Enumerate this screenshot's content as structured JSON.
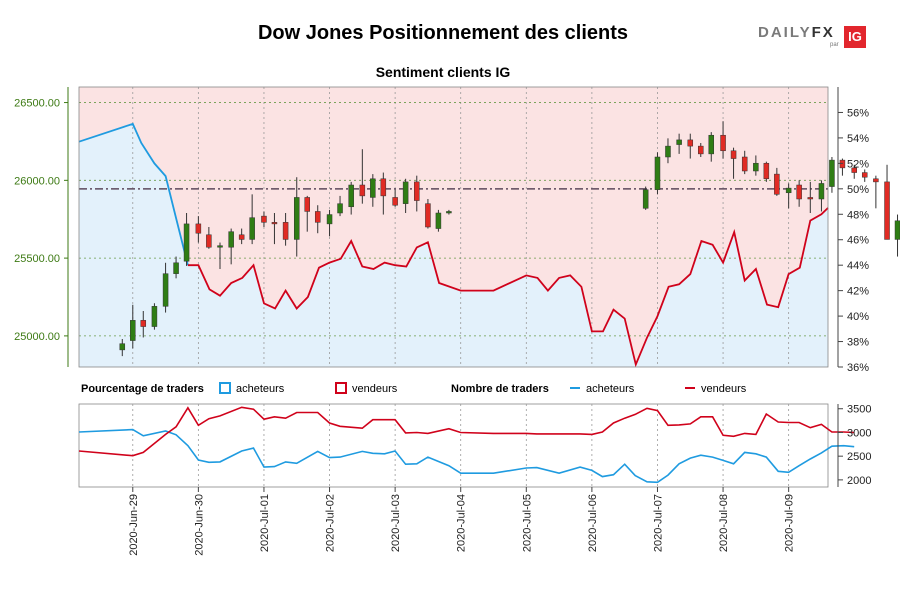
{
  "title": "Dow Jones Positionnement des clients",
  "subtitle": "Sentiment clients IG",
  "logo": {
    "brand": "DAILY",
    "brand_fx": "FX",
    "par": "par",
    "ig": "IG"
  },
  "colors": {
    "buyers": "#1f9be0",
    "sellers": "#d0021b",
    "buyers_fill": "#e3f1fb",
    "sellers_fill": "#fbe3e3",
    "candle_up": "#2f7d14",
    "candle_down": "#e02b24",
    "price_axis": "#3d7a14",
    "ref_line": "#5c4a5c"
  },
  "legend": {
    "pct_label": "Pourcentage de traders",
    "count_label": "Nombre de traders",
    "buyers": "acheteurs",
    "sellers": "vendeurs"
  },
  "chart_data": {
    "type": "candlestick+area+line",
    "title": "Dow Jones Positionnement des clients",
    "subtitle": "Sentiment clients IG",
    "x_ticks": [
      "2020-Jun-29",
      "2020-Jun-30",
      "2020-Jul-01",
      "2020-Jul-02",
      "2020-Jul-03",
      "2020-Jul-04",
      "2020-Jul-05",
      "2020-Jul-06",
      "2020-Jul-07",
      "2020-Jul-08",
      "2020-Jul-09"
    ],
    "x_range": [
      -0.82,
      10.6
    ],
    "price_axis": {
      "ticks": [
        25000,
        25500,
        26000,
        26500
      ],
      "labels": [
        "25000.00",
        "25500.00",
        "26000.00",
        "26500.00"
      ],
      "range": [
        24800,
        26600
      ]
    },
    "pct_axis": {
      "ticks": [
        36,
        38,
        40,
        42,
        44,
        46,
        48,
        50,
        52,
        54,
        56
      ],
      "labels": [
        "36%",
        "38%",
        "40%",
        "42%",
        "44%",
        "46%",
        "48%",
        "50%",
        "52%",
        "54%",
        "56%"
      ],
      "range": [
        36,
        58
      ]
    },
    "count_axis": {
      "ticks": [
        2000,
        2500,
        3000,
        3500
      ],
      "labels": [
        "2000",
        "2500",
        "3000",
        "3500"
      ],
      "range": [
        1850,
        3600
      ]
    },
    "reference_pct": 50,
    "buyers_pct": {
      "x": [
        -0.82,
        0.0,
        0.13,
        0.33,
        0.5,
        0.67,
        0.84,
        1.0,
        1.17,
        1.33,
        1.5,
        1.67,
        1.84,
        2.0,
        2.17,
        2.33,
        2.5,
        2.67,
        2.84,
        3.0,
        3.17,
        3.33,
        3.5,
        3.67,
        3.84,
        4.0,
        4.17,
        4.33,
        4.5,
        4.67,
        5.0,
        5.17,
        5.5,
        6.0,
        6.17,
        6.33,
        6.5,
        6.67,
        6.84,
        7.0,
        7.17,
        7.33,
        7.5,
        7.67,
        7.84,
        8.0,
        8.17,
        8.33,
        8.5,
        8.67,
        8.84,
        9.0,
        9.17,
        9.33,
        9.5,
        9.67,
        9.84,
        10.0,
        10.17,
        10.33,
        10.5,
        10.6
      ],
      "values": [
        53.7,
        55.1,
        53.6,
        52.0,
        51.0,
        47.5,
        44.0,
        44.0,
        42.1,
        41.6,
        42.6,
        43.0,
        44.0,
        41.0,
        40.6,
        42.0,
        40.6,
        41.5,
        43.8,
        44.2,
        44.5,
        45.9,
        43.9,
        43.7,
        44.2,
        44.0,
        43.9,
        45.4,
        45.8,
        42.6,
        42.0,
        42.0,
        42.0,
        43.2,
        43.0,
        42.0,
        43.0,
        43.2,
        42.3,
        38.8,
        38.8,
        40.5,
        39.8,
        36.2,
        38.3,
        40.0,
        42.3,
        42.5,
        43.3,
        45.9,
        45.6,
        44.2,
        46.6,
        42.8,
        43.7,
        40.9,
        40.7,
        43.3,
        43.8,
        47.5,
        48.0,
        48.5
      ]
    },
    "sellers_pct_note": "sellers% = 100 - buyers%",
    "candles": [
      {
        "x": -0.16,
        "o": 24910,
        "h": 24980,
        "l": 24870,
        "c": 24950
      },
      {
        "x": 0.0,
        "o": 24970,
        "h": 25200,
        "l": 24920,
        "c": 25100
      },
      {
        "x": 0.16,
        "o": 25100,
        "h": 25160,
        "l": 24990,
        "c": 25060
      },
      {
        "x": 0.33,
        "o": 25060,
        "h": 25210,
        "l": 25040,
        "c": 25190
      },
      {
        "x": 0.5,
        "o": 25190,
        "h": 25470,
        "l": 25150,
        "c": 25400
      },
      {
        "x": 0.66,
        "o": 25400,
        "h": 25510,
        "l": 25370,
        "c": 25470
      },
      {
        "x": 0.82,
        "o": 25480,
        "h": 25790,
        "l": 25450,
        "c": 25720
      },
      {
        "x": 1.0,
        "o": 25720,
        "h": 25770,
        "l": 25600,
        "c": 25660
      },
      {
        "x": 1.16,
        "o": 25650,
        "h": 25700,
        "l": 25560,
        "c": 25570
      },
      {
        "x": 1.33,
        "o": 25570,
        "h": 25600,
        "l": 25430,
        "c": 25580
      },
      {
        "x": 1.5,
        "o": 25570,
        "h": 25690,
        "l": 25460,
        "c": 25670
      },
      {
        "x": 1.66,
        "o": 25650,
        "h": 25690,
        "l": 25590,
        "c": 25620
      },
      {
        "x": 1.82,
        "o": 25620,
        "h": 25910,
        "l": 25590,
        "c": 25760
      },
      {
        "x": 2.0,
        "o": 25770,
        "h": 25800,
        "l": 25700,
        "c": 25730
      },
      {
        "x": 2.16,
        "o": 25730,
        "h": 25790,
        "l": 25590,
        "c": 25720
      },
      {
        "x": 2.33,
        "o": 25730,
        "h": 25790,
        "l": 25580,
        "c": 25620
      },
      {
        "x": 2.5,
        "o": 25620,
        "h": 26020,
        "l": 25510,
        "c": 25890
      },
      {
        "x": 2.66,
        "o": 25890,
        "h": 25900,
        "l": 25670,
        "c": 25800
      },
      {
        "x": 2.82,
        "o": 25800,
        "h": 25840,
        "l": 25660,
        "c": 25730
      },
      {
        "x": 3.0,
        "o": 25720,
        "h": 25810,
        "l": 25640,
        "c": 25780
      },
      {
        "x": 3.16,
        "o": 25790,
        "h": 25900,
        "l": 25770,
        "c": 25850
      },
      {
        "x": 3.33,
        "o": 25830,
        "h": 25990,
        "l": 25780,
        "c": 25970
      },
      {
        "x": 3.5,
        "o": 25970,
        "h": 26200,
        "l": 25850,
        "c": 25900
      },
      {
        "x": 3.66,
        "o": 25890,
        "h": 26040,
        "l": 25830,
        "c": 26010
      },
      {
        "x": 3.82,
        "o": 26010,
        "h": 26050,
        "l": 25780,
        "c": 25900
      },
      {
        "x": 4.0,
        "o": 25890,
        "h": 25940,
        "l": 25830,
        "c": 25840
      },
      {
        "x": 4.16,
        "o": 25850,
        "h": 26010,
        "l": 25790,
        "c": 25990
      },
      {
        "x": 4.33,
        "o": 25990,
        "h": 26030,
        "l": 25800,
        "c": 25870
      },
      {
        "x": 4.5,
        "o": 25850,
        "h": 25880,
        "l": 25690,
        "c": 25700
      },
      {
        "x": 4.66,
        "o": 25690,
        "h": 25810,
        "l": 25670,
        "c": 25790
      },
      {
        "x": 4.82,
        "o": 25790,
        "h": 25810,
        "l": 25780,
        "c": 25800
      },
      {
        "x": 7.82,
        "o": 25820,
        "h": 25960,
        "l": 25810,
        "c": 25940
      },
      {
        "x": 8.0,
        "o": 25940,
        "h": 26180,
        "l": 25910,
        "c": 26150
      },
      {
        "x": 8.16,
        "o": 26150,
        "h": 26270,
        "l": 26110,
        "c": 26220
      },
      {
        "x": 8.33,
        "o": 26230,
        "h": 26300,
        "l": 26170,
        "c": 26260
      },
      {
        "x": 8.5,
        "o": 26260,
        "h": 26300,
        "l": 26140,
        "c": 26220
      },
      {
        "x": 8.66,
        "o": 26220,
        "h": 26240,
        "l": 26150,
        "c": 26170
      },
      {
        "x": 8.82,
        "o": 26170,
        "h": 26310,
        "l": 26120,
        "c": 26290
      },
      {
        "x": 9.0,
        "o": 26290,
        "h": 26380,
        "l": 26140,
        "c": 26190
      },
      {
        "x": 9.16,
        "o": 26190,
        "h": 26210,
        "l": 26010,
        "c": 26140
      },
      {
        "x": 9.33,
        "o": 26150,
        "h": 26190,
        "l": 26040,
        "c": 26060
      },
      {
        "x": 9.5,
        "o": 26060,
        "h": 26160,
        "l": 26030,
        "c": 26110
      },
      {
        "x": 9.66,
        "o": 26110,
        "h": 26120,
        "l": 25990,
        "c": 26010
      },
      {
        "x": 9.82,
        "o": 26040,
        "h": 26080,
        "l": 25900,
        "c": 25910
      },
      {
        "x": 10.0,
        "o": 25920,
        "h": 25980,
        "l": 25820,
        "c": 25950
      },
      {
        "x": 10.16,
        "o": 25970,
        "h": 26000,
        "l": 25830,
        "c": 25880
      },
      {
        "x": 10.33,
        "o": 25890,
        "h": 25990,
        "l": 25790,
        "c": 25880
      },
      {
        "x": 10.5,
        "o": 25880,
        "h": 26000,
        "l": 25800,
        "c": 25980
      },
      {
        "x": 10.66,
        "o": 25960,
        "h": 26150,
        "l": 25920,
        "c": 26130
      },
      {
        "x": 10.82,
        "o": 26130,
        "h": 26140,
        "l": 26030,
        "c": 26080
      },
      {
        "x": 11.0,
        "o": 26080,
        "h": 26100,
        "l": 26010,
        "c": 26050
      },
      {
        "x": 11.16,
        "o": 26050,
        "h": 26070,
        "l": 25990,
        "c": 26020
      },
      {
        "x": 11.33,
        "o": 26010,
        "h": 26030,
        "l": 25820,
        "c": 25990
      },
      {
        "x": 11.5,
        "o": 25990,
        "h": 26100,
        "l": 25620,
        "c": 25620
      },
      {
        "x": 11.66,
        "o": 25620,
        "h": 25780,
        "l": 25510,
        "c": 25740
      }
    ],
    "buyers_count": {
      "x": [
        -0.82,
        0.0,
        0.16,
        0.5,
        0.66,
        0.84,
        1.0,
        1.16,
        1.33,
        1.66,
        1.84,
        2.0,
        2.16,
        2.33,
        2.5,
        2.82,
        3.0,
        3.16,
        3.5,
        3.66,
        3.84,
        4.0,
        4.16,
        4.33,
        4.5,
        4.82,
        5.0,
        5.5,
        6.0,
        6.16,
        6.5,
        6.82,
        7.0,
        7.16,
        7.33,
        7.5,
        7.66,
        7.84,
        8.0,
        8.16,
        8.33,
        8.5,
        8.66,
        8.84,
        9.0,
        9.16,
        9.33,
        9.5,
        9.66,
        9.84,
        10.0,
        10.16,
        10.33,
        10.5,
        10.66,
        10.84,
        11.0
      ],
      "values": [
        3010,
        3060,
        2930,
        3030,
        2950,
        2720,
        2420,
        2370,
        2380,
        2610,
        2670,
        2270,
        2280,
        2380,
        2350,
        2600,
        2470,
        2480,
        2600,
        2560,
        2550,
        2610,
        2330,
        2340,
        2480,
        2300,
        2140,
        2140,
        2250,
        2260,
        2140,
        2270,
        2200,
        2070,
        2110,
        2330,
        2090,
        1960,
        1950,
        2100,
        2340,
        2460,
        2520,
        2480,
        2410,
        2340,
        2580,
        2550,
        2480,
        2180,
        2160,
        2300,
        2440,
        2570,
        2710,
        2720,
        2700
      ]
    },
    "sellers_count": {
      "x": [
        -0.82,
        0.0,
        0.16,
        0.5,
        0.66,
        0.84,
        1.0,
        1.16,
        1.33,
        1.66,
        1.84,
        2.0,
        2.16,
        2.33,
        2.5,
        2.82,
        3.0,
        3.16,
        3.5,
        3.66,
        3.84,
        4.0,
        4.16,
        4.33,
        4.5,
        4.82,
        5.0,
        5.5,
        6.0,
        6.16,
        6.5,
        6.82,
        7.0,
        7.16,
        7.33,
        7.5,
        7.66,
        7.84,
        8.0,
        8.16,
        8.33,
        8.5,
        8.66,
        8.84,
        9.0,
        9.16,
        9.33,
        9.5,
        9.66,
        9.84,
        10.0,
        10.16,
        10.33,
        10.5,
        10.66,
        10.84,
        11.0
      ],
      "values": [
        2610,
        2510,
        2580,
        2960,
        3120,
        3520,
        3150,
        3290,
        3350,
        3530,
        3490,
        3280,
        3330,
        3300,
        3420,
        3420,
        3200,
        3130,
        3090,
        3270,
        3270,
        3270,
        2990,
        3000,
        2980,
        3080,
        3000,
        2980,
        2980,
        2970,
        2970,
        2970,
        2960,
        3010,
        3200,
        3300,
        3380,
        3510,
        3460,
        3150,
        3160,
        3180,
        3330,
        3330,
        2940,
        2920,
        2980,
        2960,
        3390,
        3220,
        3210,
        3210,
        3100,
        3170,
        3010,
        3010,
        3000
      ]
    }
  }
}
